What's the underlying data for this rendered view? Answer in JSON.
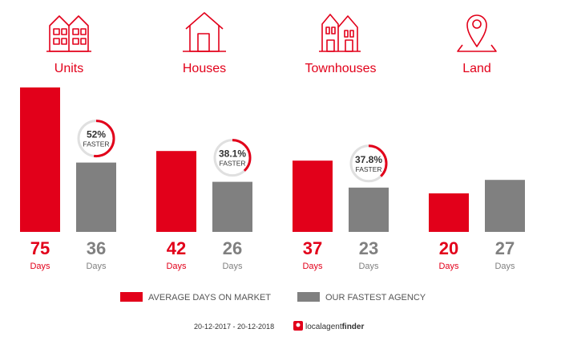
{
  "chart_data": {
    "type": "bar",
    "categories": [
      "Units",
      "Houses",
      "Townhouses",
      "Land"
    ],
    "series": [
      {
        "name": "AVERAGE DAYS ON MARKET",
        "values": [
          75,
          42,
          37,
          20
        ]
      },
      {
        "name": "OUR FASTEST AGENCY",
        "values": [
          36,
          26,
          23,
          27
        ]
      }
    ],
    "unit_label": "Days",
    "faster": [
      {
        "pct": "52%",
        "label": "FASTER",
        "fraction": 0.52
      },
      {
        "pct": "38.1%",
        "label": "FASTER",
        "fraction": 0.381
      },
      {
        "pct": "37.8%",
        "label": "FASTER",
        "fraction": 0.378
      },
      null
    ],
    "icons": [
      "units-icon",
      "house-icon",
      "townhouses-icon",
      "land-pin-icon"
    ],
    "legend_placement": "bottom",
    "colors": {
      "market": "#e2001a",
      "agency": "#808080",
      "ring_bg": "#e0e0e0"
    }
  },
  "legend": {
    "market_label": "AVERAGE DAYS ON MARKET",
    "agency_label": "OUR FASTEST AGENCY"
  },
  "footer": {
    "date_range": "20-12-2017 - 20-12-2018",
    "brand_part1": "localagent",
    "brand_part2": "finder"
  }
}
